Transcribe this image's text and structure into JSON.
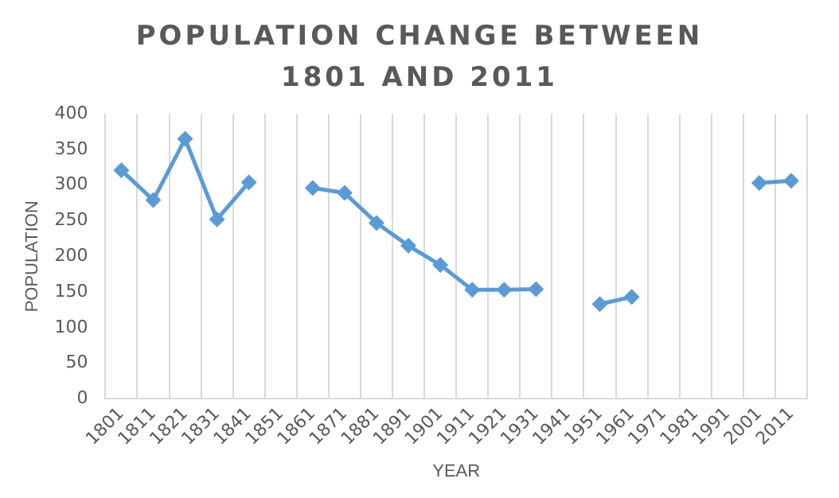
{
  "chart_data": {
    "type": "line",
    "title": "POPULATION CHANGE BETWEEN 1801 AND 2011",
    "xlabel": "YEAR",
    "ylabel": "POPULATION",
    "categories": [
      "1801",
      "1811",
      "1821",
      "1831",
      "1841",
      "1851",
      "1861",
      "1871",
      "1881",
      "1891",
      "1901",
      "1911",
      "1921",
      "1931",
      "1941",
      "1951",
      "1961",
      "1971",
      "1981",
      "1991",
      "2001",
      "2011"
    ],
    "series": [
      {
        "color": "#5b9bd5",
        "values": [
          321,
          279,
          365,
          252,
          304,
          null,
          296,
          289,
          247,
          215,
          188,
          153,
          153,
          154,
          null,
          133,
          143,
          null,
          null,
          null,
          303,
          306
        ]
      }
    ],
    "ylim": [
      0,
      400
    ],
    "yticks": [
      0,
      50,
      100,
      150,
      200,
      250,
      300,
      350,
      400
    ],
    "grid": "x",
    "marker": "diamond",
    "line_style": "solid",
    "legend": false
  }
}
